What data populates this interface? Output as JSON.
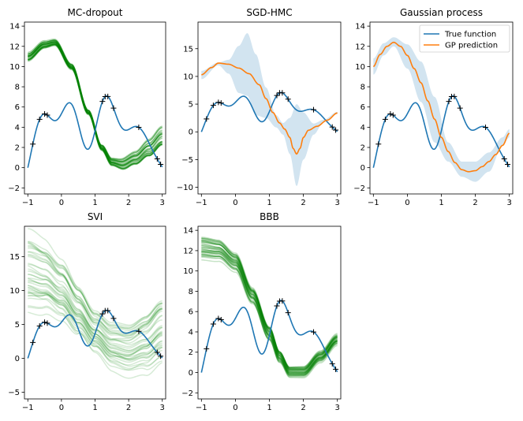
{
  "colors": {
    "true_function": "#1f77b4",
    "gp_prediction": "#ff7f0e",
    "band": "#1f77b4",
    "samples": "#008000",
    "points": "#000000"
  },
  "legend": {
    "labels": [
      "True function",
      "GP prediction"
    ]
  },
  "chart_data": [
    {
      "type": "line",
      "title": "MC-dropout",
      "xlim": [
        -1.1,
        3.1
      ],
      "ylim": [
        -2.6,
        14.4
      ],
      "xticks": [
        -1,
        0,
        1,
        2,
        3
      ],
      "yticks": [
        -2,
        0,
        2,
        4,
        6,
        8,
        10,
        12,
        14
      ],
      "series": [
        {
          "kind": "true_function"
        },
        {
          "kind": "samples",
          "count": 24,
          "center": [
            [
              -1,
              11.0
            ],
            [
              -0.5,
              12.2
            ],
            [
              -0.2,
              12.4
            ],
            [
              0.3,
              10.0
            ],
            [
              0.8,
              5.5
            ],
            [
              1.2,
              2.0
            ],
            [
              1.5,
              0.6
            ],
            [
              1.8,
              0.4
            ],
            [
              2.2,
              1.0
            ],
            [
              2.6,
              2.0
            ],
            [
              3.0,
              3.2
            ]
          ],
          "spread": [
            [
              -1,
              0.35
            ],
            [
              0,
              0.25
            ],
            [
              1,
              0.2
            ],
            [
              1.5,
              0.35
            ],
            [
              2,
              0.6
            ],
            [
              3,
              1.0
            ]
          ],
          "opacity": 0.35
        }
      ]
    },
    {
      "type": "line",
      "title": "SGD-HMC",
      "xlim": [
        -1.1,
        3.1
      ],
      "ylim": [
        -11.2,
        19.8
      ],
      "xticks": [
        -1,
        0,
        1,
        2,
        3
      ],
      "yticks": [
        -10,
        -5,
        0,
        5,
        10,
        15
      ],
      "series": [
        {
          "kind": "true_function"
        },
        {
          "kind": "band",
          "upper": [
            [
              -1,
              11.0
            ],
            [
              -0.5,
              12.5
            ],
            [
              -0.2,
              13.0
            ],
            [
              0.1,
              15.5
            ],
            [
              0.35,
              17.8
            ],
            [
              0.6,
              14.0
            ],
            [
              0.9,
              8.0
            ],
            [
              1.2,
              3.0
            ],
            [
              1.4,
              1.6
            ],
            [
              1.6,
              2.5
            ],
            [
              1.8,
              5.0
            ],
            [
              2.0,
              3.5
            ],
            [
              2.3,
              1.5
            ],
            [
              2.6,
              2.2
            ],
            [
              3.0,
              3.6
            ]
          ],
          "lower": [
            [
              -1,
              9.5
            ],
            [
              -0.5,
              12.0
            ],
            [
              -0.2,
              10.5
            ],
            [
              0.1,
              7.0
            ],
            [
              0.35,
              6.5
            ],
            [
              0.6,
              3.0
            ],
            [
              0.9,
              2.5
            ],
            [
              1.2,
              0.8
            ],
            [
              1.4,
              -0.5
            ],
            [
              1.6,
              -4.0
            ],
            [
              1.8,
              -9.8
            ],
            [
              2.0,
              -5.0
            ],
            [
              2.3,
              -0.5
            ],
            [
              2.6,
              1.8
            ],
            [
              3.0,
              3.2
            ]
          ]
        },
        {
          "kind": "mean",
          "points": [
            [
              -1,
              10.3
            ],
            [
              -0.7,
              11.6
            ],
            [
              -0.5,
              12.4
            ],
            [
              -0.2,
              12.2
            ],
            [
              0.1,
              11.5
            ],
            [
              0.4,
              10.5
            ],
            [
              0.7,
              8.5
            ],
            [
              0.9,
              6.0
            ],
            [
              1.1,
              3.5
            ],
            [
              1.3,
              1.6
            ],
            [
              1.45,
              0.5
            ],
            [
              1.6,
              -1.0
            ],
            [
              1.7,
              -3.0
            ],
            [
              1.8,
              -4.0
            ],
            [
              1.9,
              -3.0
            ],
            [
              2.0,
              -1.0
            ],
            [
              2.15,
              0.3
            ],
            [
              2.4,
              1.0
            ],
            [
              2.7,
              2.1
            ],
            [
              3.0,
              3.4
            ]
          ]
        }
      ]
    },
    {
      "type": "line",
      "title": "Gaussian process",
      "xlim": [
        -1.1,
        3.1
      ],
      "ylim": [
        -2.6,
        14.4
      ],
      "xticks": [
        -1,
        0,
        1,
        2,
        3
      ],
      "yticks": [
        -2,
        0,
        2,
        4,
        6,
        8,
        10,
        12,
        14
      ],
      "legend_position": "top-right",
      "series": [
        {
          "kind": "true_function"
        },
        {
          "kind": "band",
          "upper": [
            [
              -1,
              10.8
            ],
            [
              -0.7,
              12.3
            ],
            [
              -0.4,
              12.9
            ],
            [
              0,
              12.2
            ],
            [
              0.4,
              10.5
            ],
            [
              0.8,
              7.0
            ],
            [
              1.2,
              2.5
            ],
            [
              1.6,
              0.6
            ],
            [
              2.0,
              0.6
            ],
            [
              2.4,
              1.5
            ],
            [
              2.8,
              3.0
            ],
            [
              3.0,
              3.8
            ]
          ],
          "lower": [
            [
              -1,
              9.2
            ],
            [
              -0.7,
              11.1
            ],
            [
              -0.4,
              12.0
            ],
            [
              0,
              9.8
            ],
            [
              0.4,
              6.5
            ],
            [
              0.8,
              2.5
            ],
            [
              1.2,
              0.6
            ],
            [
              1.6,
              -0.9
            ],
            [
              2.0,
              -1.4
            ],
            [
              2.4,
              -0.4
            ],
            [
              2.8,
              2.2
            ],
            [
              3.0,
              3.0
            ]
          ]
        },
        {
          "kind": "mean",
          "points": [
            [
              -1,
              10.0
            ],
            [
              -0.8,
              11.2
            ],
            [
              -0.6,
              12.0
            ],
            [
              -0.4,
              12.4
            ],
            [
              -0.2,
              12.0
            ],
            [
              0,
              11.1
            ],
            [
              0.2,
              9.8
            ],
            [
              0.4,
              8.4
            ],
            [
              0.6,
              6.6
            ],
            [
              0.8,
              4.8
            ],
            [
              1.0,
              3.0
            ],
            [
              1.2,
              1.6
            ],
            [
              1.4,
              0.5
            ],
            [
              1.6,
              -0.2
            ],
            [
              1.8,
              -0.4
            ],
            [
              2.0,
              -0.3
            ],
            [
              2.2,
              0.1
            ],
            [
              2.4,
              0.6
            ],
            [
              2.6,
              1.3
            ],
            [
              2.8,
              2.2
            ],
            [
              3.0,
              3.4
            ]
          ]
        }
      ]
    },
    {
      "type": "line",
      "title": "SVI",
      "xlim": [
        -1.1,
        3.1
      ],
      "ylim": [
        -6.0,
        19.5
      ],
      "xticks": [
        -1,
        0,
        1,
        2,
        3
      ],
      "yticks": [
        -5,
        0,
        5,
        10,
        15
      ],
      "series": [
        {
          "kind": "true_function"
        },
        {
          "kind": "samples",
          "count": 40,
          "center": [
            [
              -1,
              12.5
            ],
            [
              -0.5,
              11.8
            ],
            [
              0,
              10.0
            ],
            [
              0.5,
              7.0
            ],
            [
              1.0,
              4.0
            ],
            [
              1.5,
              2.0
            ],
            [
              2.0,
              1.5
            ],
            [
              2.5,
              2.5
            ],
            [
              3.0,
              4.5
            ]
          ],
          "spread": [
            [
              -1,
              4.5
            ],
            [
              0,
              3.5
            ],
            [
              1,
              2.5
            ],
            [
              2,
              3.0
            ],
            [
              3,
              4.0
            ]
          ],
          "opacity": 0.16
        }
      ]
    },
    {
      "type": "line",
      "title": "BBB",
      "xlim": [
        -1.1,
        3.1
      ],
      "ylim": [
        -2.6,
        14.4
      ],
      "xticks": [
        -1,
        0,
        1,
        2,
        3
      ],
      "yticks": [
        -2,
        0,
        2,
        4,
        6,
        8,
        10,
        12,
        14
      ],
      "series": [
        {
          "kind": "true_function"
        },
        {
          "kind": "samples",
          "count": 40,
          "center": [
            [
              -1,
              12.2
            ],
            [
              -0.5,
              12.0
            ],
            [
              0,
              10.8
            ],
            [
              0.5,
              7.5
            ],
            [
              1.0,
              3.8
            ],
            [
              1.3,
              1.5
            ],
            [
              1.6,
              0.0
            ],
            [
              2.0,
              0.0
            ],
            [
              2.5,
              1.5
            ],
            [
              3.0,
              3.2
            ]
          ],
          "spread": [
            [
              -1,
              1.1
            ],
            [
              0,
              0.9
            ],
            [
              1,
              0.7
            ],
            [
              1.5,
              0.5
            ],
            [
              2,
              0.5
            ],
            [
              3,
              0.5
            ]
          ],
          "opacity": 0.22
        }
      ]
    }
  ]
}
